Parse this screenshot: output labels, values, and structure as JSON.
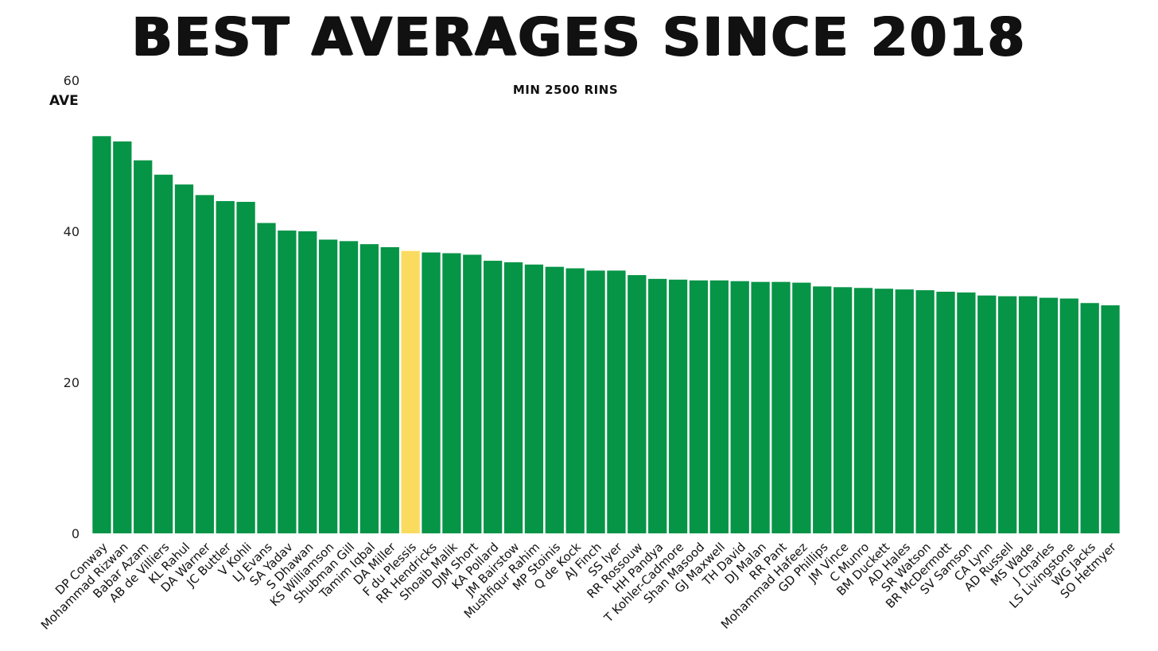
{
  "chart_data": {
    "type": "bar",
    "title": "BEST AVERAGES SINCE 2018",
    "subtitle": "MIN 2500 RINS",
    "ylabel": "AVE",
    "xlabel": "",
    "ylim": [
      0,
      60
    ],
    "yticks": [
      0,
      20,
      40,
      60
    ],
    "grid": false,
    "colors": {
      "default": "#069447",
      "highlight": "#FADB5F"
    },
    "highlight_category": "F du Plessis",
    "categories": [
      "DP Conway",
      "Mohammad Rizwan",
      "Babar Azam",
      "AB de Villiers",
      "KL Rahul",
      "DA Warner",
      "JC Buttler",
      "V Kohli",
      "LJ Evans",
      "SA Yadav",
      "S Dhawan",
      "KS Williamson",
      "Shubman Gill",
      "Tamim Iqbal",
      "DA Miller",
      "F du Plessis",
      "RR Hendricks",
      "Shoaib Malik",
      "DJM Short",
      "KA Pollard",
      "JM Bairstow",
      "Mushfiqur Rahim",
      "MP Stoinis",
      "Q de Kock",
      "AJ Finch",
      "SS Iyer",
      "RR Rossouw",
      "HH Pandya",
      "T Kohler-Cadmore",
      "Shan Masood",
      "GJ Maxwell",
      "TH David",
      "DJ Malan",
      "RR Pant",
      "Mohammad Hafeez",
      "GD Phillips",
      "JM Vince",
      "C Munro",
      "BM Duckett",
      "AD Hales",
      "SR Watson",
      "BR McDermott",
      "SV Samson",
      "CA Lynn",
      "AD Russell",
      "MS Wade",
      "J Charles",
      "LS Livingstone",
      "WG Jacks",
      "SO Hetmyer"
    ],
    "values": [
      52.6,
      51.9,
      49.4,
      47.5,
      46.2,
      44.8,
      44.0,
      43.9,
      41.1,
      40.1,
      40.0,
      38.9,
      38.7,
      38.3,
      37.9,
      37.4,
      37.2,
      37.1,
      36.9,
      36.1,
      35.9,
      35.6,
      35.3,
      35.1,
      34.8,
      34.8,
      34.2,
      33.7,
      33.6,
      33.5,
      33.5,
      33.4,
      33.3,
      33.3,
      33.2,
      32.7,
      32.6,
      32.5,
      32.4,
      32.3,
      32.2,
      32.0,
      31.9,
      31.5,
      31.4,
      31.4,
      31.2,
      31.1,
      30.5,
      30.2
    ]
  }
}
